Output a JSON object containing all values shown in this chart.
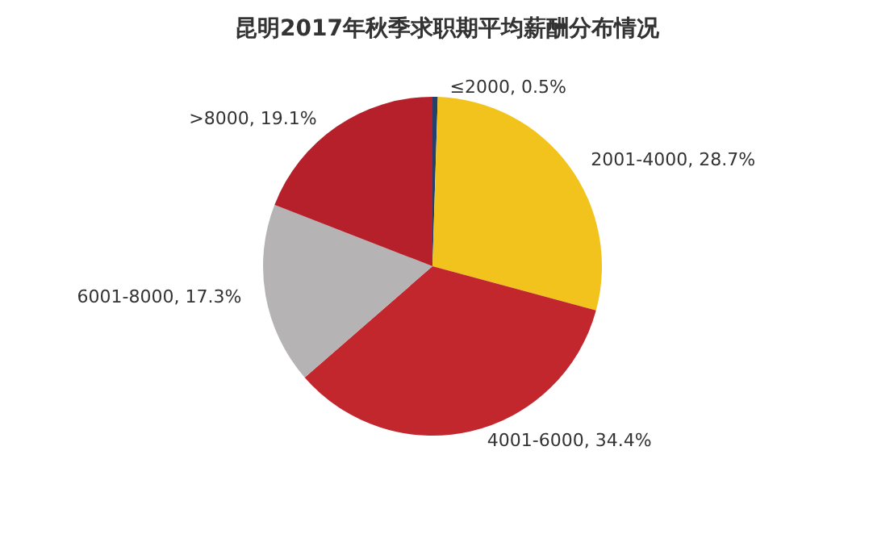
{
  "chart_data": {
    "type": "pie",
    "title": "昆明2017年秋季求职期平均薪酬分布情况",
    "categories": [
      "≤2000",
      "2001-4000",
      "4001-6000",
      "6001-8000",
      ">8000"
    ],
    "values": [
      0.5,
      28.7,
      34.4,
      17.3,
      19.1
    ],
    "value_labels": [
      "0.5%",
      "28.7%",
      "34.4%",
      "17.3%",
      "19.1%"
    ],
    "colors": [
      "#243f6b",
      "#f2c31c",
      "#c1272d",
      "#b5b3b3",
      "#b6202b"
    ],
    "legend": false
  }
}
